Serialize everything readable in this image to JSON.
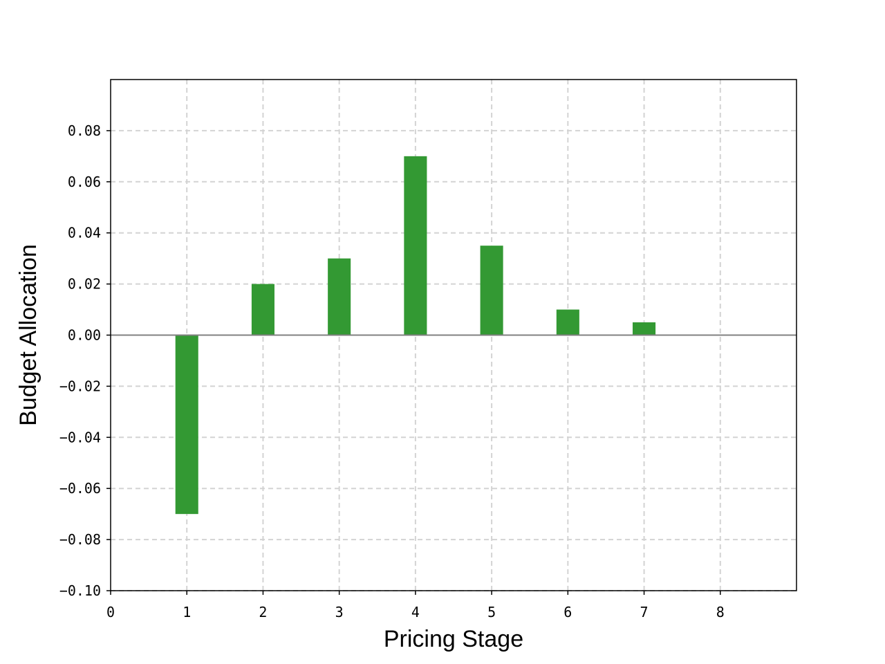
{
  "chart_data": {
    "type": "bar",
    "title": "",
    "xlabel": "Pricing Stage",
    "ylabel": "Budget Allocation",
    "x": [
      1,
      2,
      3,
      4,
      5,
      6,
      7,
      8
    ],
    "values": [
      -0.07,
      0.02,
      0.03,
      0.07,
      0.035,
      0.01,
      0.005,
      0.0
    ],
    "xlim": [
      0,
      9
    ],
    "ylim": [
      -0.1,
      0.1
    ],
    "xticks": [
      "0",
      "1",
      "2",
      "3",
      "4",
      "5",
      "6",
      "7",
      "8"
    ],
    "yticks": [
      -0.1,
      -0.08,
      -0.06,
      -0.04,
      -0.02,
      0.0,
      0.02,
      0.04,
      0.06,
      0.08
    ],
    "ytick_labels": [
      "−0.10",
      "−0.08",
      "−0.06",
      "−0.04",
      "−0.02",
      "0.00",
      "0.02",
      "0.04",
      "0.06",
      "0.08"
    ],
    "grid": true,
    "legend": "none",
    "colors": {
      "bar": "#339933",
      "grid": "#d3d3d3",
      "zero_line": "#808080",
      "axis": "#000000"
    }
  }
}
